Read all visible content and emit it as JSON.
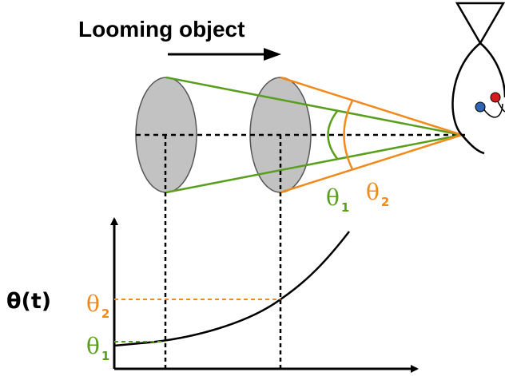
{
  "title": "Looming object",
  "axis_label": "θ(t)",
  "theta_symbol": "θ",
  "sub1": "1",
  "sub2": "2",
  "colors": {
    "green": "#5a9e1e",
    "orange": "#f08a1c",
    "disk_fill": "#c2c2c2",
    "eye_blue": "#2e64b4",
    "eye_red": "#d41c1c"
  },
  "icons": [
    "right-arrow-icon",
    "fish-icon",
    "eye-icon"
  ]
}
